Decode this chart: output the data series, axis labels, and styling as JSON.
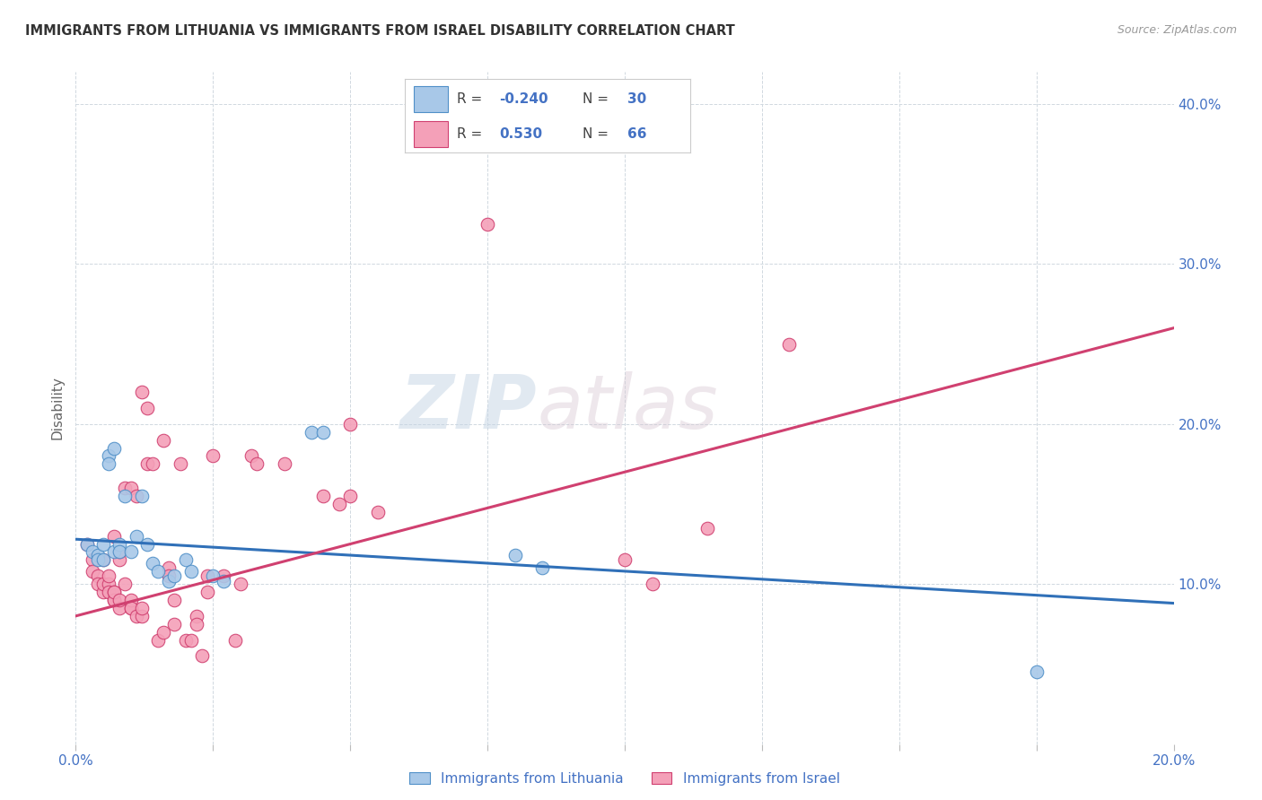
{
  "title": "IMMIGRANTS FROM LITHUANIA VS IMMIGRANTS FROM ISRAEL DISABILITY CORRELATION CHART",
  "source": "Source: ZipAtlas.com",
  "ylabel": "Disability",
  "xlim": [
    0.0,
    0.2
  ],
  "ylim": [
    0.0,
    0.42
  ],
  "xticks": [
    0.0,
    0.025,
    0.05,
    0.075,
    0.1,
    0.125,
    0.15,
    0.175,
    0.2
  ],
  "xtick_labels": [
    "0.0%",
    "",
    "",
    "",
    "",
    "",
    "",
    "",
    "20.0%"
  ],
  "yticks": [
    0.0,
    0.1,
    0.2,
    0.3,
    0.4
  ],
  "ytick_labels_right": [
    "",
    "10.0%",
    "20.0%",
    "30.0%",
    "40.0%"
  ],
  "legend_r_blue": "-0.240",
  "legend_n_blue": "30",
  "legend_r_pink": "0.530",
  "legend_n_pink": "66",
  "blue_scatter": [
    [
      0.002,
      0.125
    ],
    [
      0.003,
      0.12
    ],
    [
      0.004,
      0.118
    ],
    [
      0.004,
      0.115
    ],
    [
      0.005,
      0.125
    ],
    [
      0.005,
      0.115
    ],
    [
      0.006,
      0.18
    ],
    [
      0.006,
      0.175
    ],
    [
      0.007,
      0.185
    ],
    [
      0.007,
      0.12
    ],
    [
      0.008,
      0.125
    ],
    [
      0.008,
      0.12
    ],
    [
      0.009,
      0.155
    ],
    [
      0.01,
      0.12
    ],
    [
      0.011,
      0.13
    ],
    [
      0.012,
      0.155
    ],
    [
      0.013,
      0.125
    ],
    [
      0.014,
      0.113
    ],
    [
      0.015,
      0.108
    ],
    [
      0.017,
      0.102
    ],
    [
      0.018,
      0.105
    ],
    [
      0.02,
      0.115
    ],
    [
      0.021,
      0.108
    ],
    [
      0.025,
      0.105
    ],
    [
      0.027,
      0.102
    ],
    [
      0.043,
      0.195
    ],
    [
      0.045,
      0.195
    ],
    [
      0.08,
      0.118
    ],
    [
      0.085,
      0.11
    ],
    [
      0.175,
      0.045
    ]
  ],
  "pink_scatter": [
    [
      0.002,
      0.125
    ],
    [
      0.003,
      0.115
    ],
    [
      0.003,
      0.108
    ],
    [
      0.004,
      0.105
    ],
    [
      0.004,
      0.1
    ],
    [
      0.005,
      0.095
    ],
    [
      0.005,
      0.1
    ],
    [
      0.005,
      0.115
    ],
    [
      0.006,
      0.1
    ],
    [
      0.006,
      0.095
    ],
    [
      0.006,
      0.105
    ],
    [
      0.007,
      0.09
    ],
    [
      0.007,
      0.095
    ],
    [
      0.007,
      0.09
    ],
    [
      0.007,
      0.095
    ],
    [
      0.007,
      0.13
    ],
    [
      0.008,
      0.085
    ],
    [
      0.008,
      0.09
    ],
    [
      0.008,
      0.115
    ],
    [
      0.008,
      0.12
    ],
    [
      0.009,
      0.1
    ],
    [
      0.009,
      0.16
    ],
    [
      0.01,
      0.085
    ],
    [
      0.01,
      0.09
    ],
    [
      0.01,
      0.085
    ],
    [
      0.01,
      0.16
    ],
    [
      0.011,
      0.155
    ],
    [
      0.011,
      0.08
    ],
    [
      0.012,
      0.08
    ],
    [
      0.012,
      0.085
    ],
    [
      0.012,
      0.22
    ],
    [
      0.013,
      0.21
    ],
    [
      0.013,
      0.175
    ],
    [
      0.014,
      0.175
    ],
    [
      0.015,
      0.065
    ],
    [
      0.016,
      0.07
    ],
    [
      0.016,
      0.19
    ],
    [
      0.017,
      0.11
    ],
    [
      0.017,
      0.105
    ],
    [
      0.018,
      0.075
    ],
    [
      0.018,
      0.09
    ],
    [
      0.019,
      0.175
    ],
    [
      0.02,
      0.065
    ],
    [
      0.021,
      0.065
    ],
    [
      0.022,
      0.08
    ],
    [
      0.022,
      0.075
    ],
    [
      0.023,
      0.055
    ],
    [
      0.024,
      0.105
    ],
    [
      0.024,
      0.095
    ],
    [
      0.025,
      0.18
    ],
    [
      0.027,
      0.105
    ],
    [
      0.029,
      0.065
    ],
    [
      0.03,
      0.1
    ],
    [
      0.032,
      0.18
    ],
    [
      0.033,
      0.175
    ],
    [
      0.038,
      0.175
    ],
    [
      0.045,
      0.155
    ],
    [
      0.048,
      0.15
    ],
    [
      0.05,
      0.2
    ],
    [
      0.05,
      0.155
    ],
    [
      0.055,
      0.145
    ],
    [
      0.075,
      0.325
    ],
    [
      0.1,
      0.115
    ],
    [
      0.105,
      0.1
    ],
    [
      0.115,
      0.135
    ],
    [
      0.13,
      0.25
    ]
  ],
  "blue_line_x": [
    0.0,
    0.2
  ],
  "blue_line_y": [
    0.128,
    0.088
  ],
  "pink_line_x": [
    0.0,
    0.2
  ],
  "pink_line_y": [
    0.08,
    0.26
  ],
  "blue_color": "#a8c8e8",
  "pink_color": "#f4a0b8",
  "blue_edge_color": "#5090c8",
  "pink_edge_color": "#d04070",
  "blue_line_color": "#3070b8",
  "pink_line_color": "#d04070",
  "text_color": "#4472c4",
  "title_color": "#333333",
  "watermark": "ZIPatlas",
  "background_color": "#ffffff",
  "grid_color": "#d0d8e0"
}
